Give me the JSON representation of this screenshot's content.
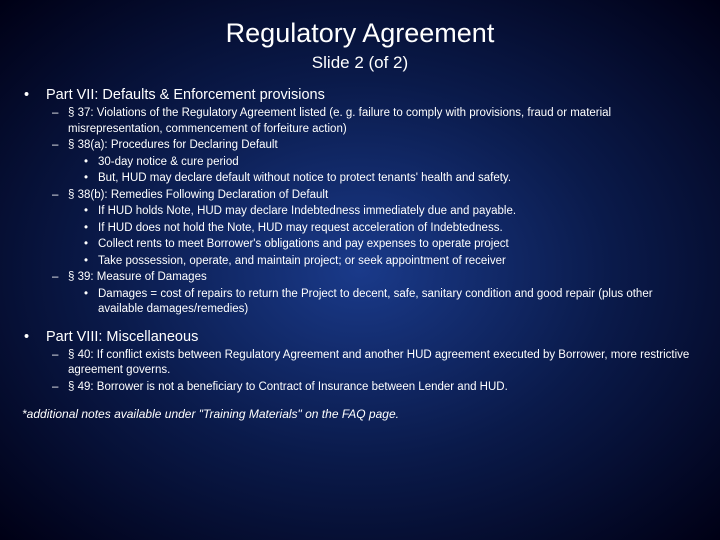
{
  "colors": {
    "text": "#ffffff",
    "bg_center": "#1a3a8a",
    "bg_mid": "#0a1a4a",
    "bg_edge": "#000015"
  },
  "typography": {
    "title_fontsize": 27,
    "subtitle_fontsize": 17,
    "section_fontsize": 14.5,
    "body_fontsize": 11.5,
    "footnote_fontsize": 12,
    "font_family": "Verdana"
  },
  "title": "Regulatory Agreement",
  "subtitle": "Slide 2 (of 2)",
  "sections": [
    {
      "heading": "Part VII: Defaults & Enforcement provisions",
      "items": [
        {
          "text": "§ 37: Violations of the Regulatory Agreement listed (e. g. failure to comply with provisions, fraud or material misrepresentation, commencement of forfeiture action)",
          "sub": []
        },
        {
          "text": "§ 38(a): Procedures for Declaring Default",
          "sub": [
            "30-day notice & cure period",
            "But, HUD may declare default without notice to protect tenants' health and safety."
          ]
        },
        {
          "text": "§ 38(b): Remedies Following Declaration of Default",
          "sub": [
            "If HUD holds Note, HUD may declare Indebtedness immediately due and payable.",
            "If HUD does not hold the Note, HUD may request acceleration of Indebtedness.",
            "Collect rents to meet Borrower's obligations and pay expenses to operate project",
            "Take possession, operate, and maintain project; or seek appointment of receiver"
          ]
        },
        {
          "text": "§ 39: Measure of Damages",
          "sub": [
            "Damages = cost of repairs to return the Project to decent, safe, sanitary condition and good repair (plus other available damages/remedies)"
          ]
        }
      ]
    },
    {
      "heading": "Part VIII: Miscellaneous",
      "items": [
        {
          "text": "§ 40: If conflict exists between Regulatory Agreement and another HUD agreement executed by Borrower, more restrictive agreement governs.",
          "sub": []
        },
        {
          "text": "§ 49: Borrower is not a beneficiary to Contract of Insurance between Lender and HUD.",
          "sub": []
        }
      ]
    }
  ],
  "footnote": "*additional notes available under \"Training Materials\" on the FAQ page."
}
